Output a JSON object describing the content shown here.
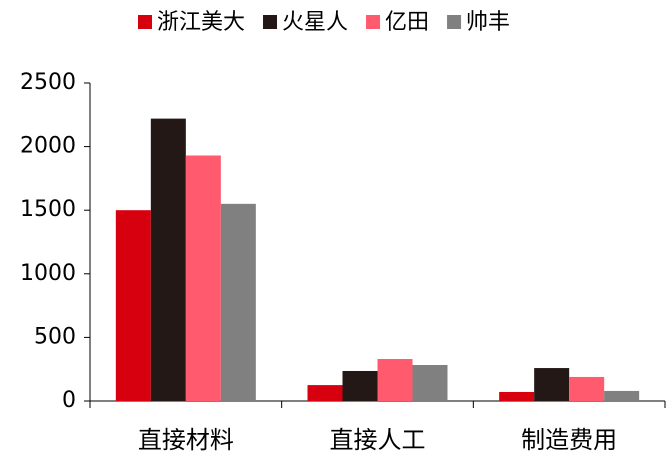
{
  "chart_data": {
    "type": "bar",
    "categories": [
      "直接材料",
      "直接人工",
      "制造费用"
    ],
    "series": [
      {
        "name": "浙江美大",
        "color": "#d7000f",
        "values": [
          1500,
          125,
          71
        ]
      },
      {
        "name": "火星人",
        "color": "#231815",
        "values": [
          2220,
          236,
          259
        ]
      },
      {
        "name": "亿田",
        "color": "#ff5a6e",
        "values": [
          1930,
          330,
          189
        ]
      },
      {
        "name": "帅丰",
        "color": "#808080",
        "values": [
          1550,
          283,
          79
        ]
      }
    ],
    "ylim": [
      0,
      2500
    ],
    "yticks": [
      0,
      500,
      1000,
      1500,
      2000,
      2500
    ],
    "grid": false,
    "legend": "top"
  }
}
